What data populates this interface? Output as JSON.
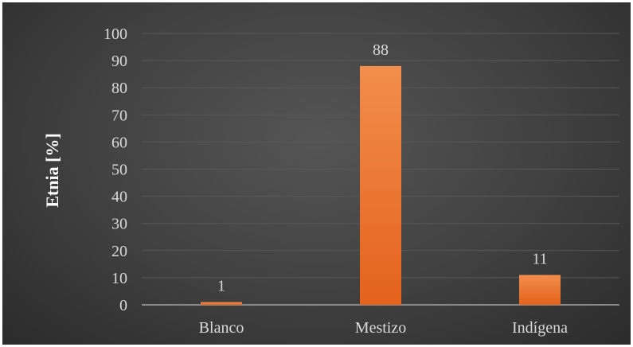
{
  "chart_data": {
    "type": "bar",
    "title": "",
    "xlabel": "",
    "ylabel": "Etnia [%]",
    "categories": [
      "Blanco",
      "Mestizo",
      "Indígena"
    ],
    "values": [
      1,
      88,
      11
    ],
    "data_labels": [
      "1",
      "88",
      "11"
    ],
    "ylim": [
      0,
      100
    ],
    "yticks": [
      0,
      10,
      20,
      30,
      40,
      50,
      60,
      70,
      80,
      90,
      100
    ],
    "grid": true,
    "legend": "none",
    "colors": {
      "bar_top": "#f28e4c",
      "bar_bottom": "#e4621c",
      "background": "#404040",
      "gridline": "#595959",
      "text": "#d9d9d9"
    }
  }
}
